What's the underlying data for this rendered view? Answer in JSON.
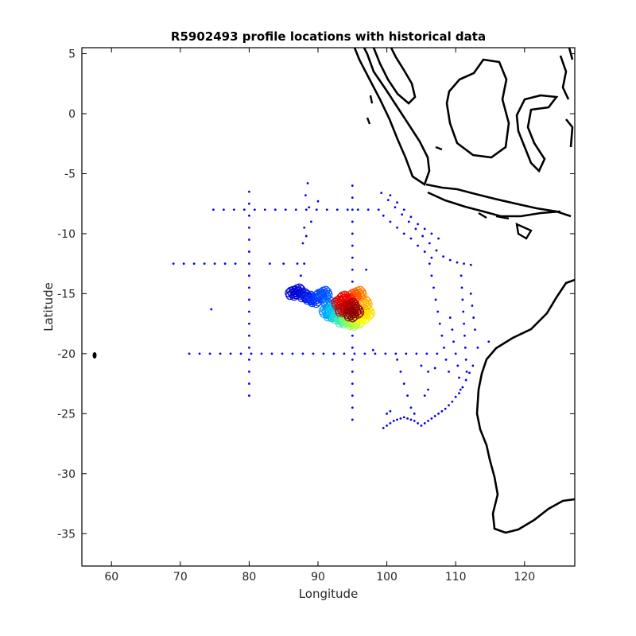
{
  "chart_data": {
    "type": "scatter",
    "title": "R5902493 profile locations with historical data",
    "xlabel": "Longitude",
    "ylabel": "Latitude",
    "xlim": [
      55.7,
      127.3
    ],
    "ylim": [
      -37.7,
      5.5
    ],
    "xticks": [
      60,
      70,
      80,
      90,
      100,
      110,
      120
    ],
    "yticks": [
      5,
      0,
      -5,
      -10,
      -15,
      -20,
      -25,
      -30,
      -35
    ],
    "colors": {
      "historical": "#0000ee",
      "coast": "#000000"
    },
    "historical_points": [
      [
        74.8,
        -8.0
      ],
      [
        76.3,
        -8.0
      ],
      [
        77.8,
        -8.0
      ],
      [
        79.3,
        -8.0
      ],
      [
        80.8,
        -8.0
      ],
      [
        82.3,
        -8.0
      ],
      [
        83.8,
        -8.0
      ],
      [
        85.3,
        -8.0
      ],
      [
        86.8,
        -8.0
      ],
      [
        88.3,
        -8.0
      ],
      [
        89.8,
        -8.0
      ],
      [
        91.3,
        -8.0
      ],
      [
        92.8,
        -8.0
      ],
      [
        94.3,
        -8.0
      ],
      [
        95.8,
        -8.0
      ],
      [
        97.3,
        -8.0
      ],
      [
        98.8,
        -8.0
      ],
      [
        71.3,
        -20.0
      ],
      [
        72.8,
        -20.0
      ],
      [
        74.3,
        -20.0
      ],
      [
        75.8,
        -20.0
      ],
      [
        77.3,
        -20.0
      ],
      [
        78.8,
        -20.0
      ],
      [
        80.3,
        -20.0
      ],
      [
        81.8,
        -20.0
      ],
      [
        83.3,
        -20.0
      ],
      [
        84.8,
        -20.0
      ],
      [
        86.3,
        -20.0
      ],
      [
        87.8,
        -20.0
      ],
      [
        89.3,
        -20.0
      ],
      [
        90.8,
        -20.0
      ],
      [
        92.3,
        -20.0
      ],
      [
        93.8,
        -20.0
      ],
      [
        95.3,
        -20.0
      ],
      [
        96.8,
        -20.0
      ],
      [
        98.3,
        -20.0
      ],
      [
        99.8,
        -20.0
      ],
      [
        101.3,
        -20.0
      ],
      [
        102.8,
        -20.0
      ],
      [
        104.3,
        -20.0
      ],
      [
        105.8,
        -20.0
      ],
      [
        107.3,
        -20.0
      ],
      [
        80.0,
        -6.5
      ],
      [
        80.0,
        -7.5
      ],
      [
        80.0,
        -8.5
      ],
      [
        80.0,
        -9.5
      ],
      [
        80.0,
        -10.5
      ],
      [
        80.0,
        -11.5
      ],
      [
        80.0,
        -12.5
      ],
      [
        80.0,
        -13.5
      ],
      [
        80.0,
        -14.5
      ],
      [
        80.0,
        -15.5
      ],
      [
        80.0,
        -16.5
      ],
      [
        80.0,
        -17.5
      ],
      [
        80.0,
        -18.5
      ],
      [
        80.0,
        -19.5
      ],
      [
        80.0,
        -20.5
      ],
      [
        80.0,
        -21.5
      ],
      [
        80.0,
        -22.5
      ],
      [
        80.0,
        -23.5
      ],
      [
        95.0,
        -6.0
      ],
      [
        95.0,
        -7.0
      ],
      [
        95.0,
        -8.0
      ],
      [
        95.0,
        -9.0
      ],
      [
        95.0,
        -10.0
      ],
      [
        95.0,
        -11.0
      ],
      [
        95.0,
        -12.0
      ],
      [
        95.0,
        -13.0
      ],
      [
        95.0,
        -14.0
      ],
      [
        95.0,
        -18.5
      ],
      [
        95.0,
        -19.5
      ],
      [
        95.0,
        -20.5
      ],
      [
        95.0,
        -21.5
      ],
      [
        95.0,
        -22.5
      ],
      [
        95.0,
        -23.5
      ],
      [
        95.0,
        -24.5
      ],
      [
        95.0,
        -25.5
      ],
      [
        69.0,
        -12.5
      ],
      [
        70.5,
        -12.5
      ],
      [
        72.0,
        -12.5
      ],
      [
        73.5,
        -12.5
      ],
      [
        75.0,
        -12.5
      ],
      [
        76.5,
        -12.5
      ],
      [
        78.0,
        -12.5
      ],
      [
        83.0,
        -12.5
      ],
      [
        85.0,
        -12.5
      ],
      [
        87.0,
        -12.5
      ],
      [
        88.0,
        -12.5
      ],
      [
        88.5,
        -5.8
      ],
      [
        88.2,
        -6.8
      ],
      [
        88.7,
        -7.8
      ],
      [
        88.0,
        -9.5
      ],
      [
        88.3,
        -10.2
      ],
      [
        87.8,
        -10.8
      ],
      [
        89.0,
        -9.0
      ],
      [
        90.0,
        -7.3
      ],
      [
        87.5,
        -13.5
      ],
      [
        74.5,
        -16.3
      ],
      [
        97.0,
        -13.0
      ],
      [
        99.2,
        -6.6
      ],
      [
        100.2,
        -7.2
      ],
      [
        101.2,
        -7.8
      ],
      [
        102.2,
        -8.4
      ],
      [
        103.2,
        -9.0
      ],
      [
        104.2,
        -9.6
      ],
      [
        105.2,
        -10.2
      ],
      [
        106.2,
        -10.8
      ],
      [
        107.2,
        -11.4
      ],
      [
        108.2,
        -11.9
      ],
      [
        109.2,
        -12.2
      ],
      [
        110.2,
        -12.4
      ],
      [
        111.2,
        -12.5
      ],
      [
        112.2,
        -12.6
      ],
      [
        100.5,
        -6.8
      ],
      [
        101.5,
        -7.4
      ],
      [
        102.5,
        -8.0
      ],
      [
        103.5,
        -8.6
      ],
      [
        104.5,
        -9.2
      ],
      [
        105.5,
        -9.6
      ],
      [
        106.5,
        -10.0
      ],
      [
        107.5,
        -10.4
      ],
      [
        99.5,
        -8.5
      ],
      [
        100.5,
        -9.0
      ],
      [
        101.5,
        -9.5
      ],
      [
        102.5,
        -10.0
      ],
      [
        103.5,
        -10.4
      ],
      [
        104.5,
        -11.0
      ],
      [
        105.5,
        -11.5
      ],
      [
        106.5,
        -12.0
      ],
      [
        106.2,
        -12.5
      ],
      [
        106.5,
        -13.5
      ],
      [
        106.8,
        -14.5
      ],
      [
        107.1,
        -15.5
      ],
      [
        107.4,
        -16.5
      ],
      [
        107.7,
        -17.5
      ],
      [
        108.0,
        -18.5
      ],
      [
        108.3,
        -19.5
      ],
      [
        108.6,
        -20.5
      ],
      [
        109.0,
        -21.5
      ],
      [
        110.8,
        -13.5
      ],
      [
        110.9,
        -14.5
      ],
      [
        111.0,
        -15.5
      ],
      [
        111.1,
        -16.5
      ],
      [
        111.2,
        -17.5
      ],
      [
        111.3,
        -18.5
      ],
      [
        111.4,
        -19.5
      ],
      [
        111.5,
        -20.5
      ],
      [
        111.6,
        -21.5
      ],
      [
        109.2,
        -17.0
      ],
      [
        109.5,
        -18.0
      ],
      [
        109.7,
        -19.0
      ],
      [
        110.0,
        -20.0
      ],
      [
        110.3,
        -21.0
      ],
      [
        110.5,
        -22.0
      ],
      [
        110.7,
        -23.0
      ],
      [
        112.2,
        -15.0
      ],
      [
        112.4,
        -16.0
      ],
      [
        112.6,
        -17.0
      ],
      [
        112.8,
        -18.0
      ],
      [
        112.5,
        -21.0
      ],
      [
        112.0,
        -21.6
      ],
      [
        111.5,
        -22.2
      ],
      [
        111.0,
        -22.8
      ],
      [
        110.5,
        -23.3
      ],
      [
        110.0,
        -23.6
      ],
      [
        109.5,
        -24.0
      ],
      [
        109.0,
        -24.3
      ],
      [
        108.5,
        -24.6
      ],
      [
        108.0,
        -24.8
      ],
      [
        107.5,
        -25.0
      ],
      [
        107.0,
        -25.2
      ],
      [
        106.5,
        -25.4
      ],
      [
        106.0,
        -25.6
      ],
      [
        105.5,
        -25.8
      ],
      [
        105.0,
        -26.0
      ],
      [
        104.5,
        -25.8
      ],
      [
        104.0,
        -25.6
      ],
      [
        103.5,
        -25.5
      ],
      [
        103.0,
        -25.4
      ],
      [
        102.5,
        -25.3
      ],
      [
        102.0,
        -25.4
      ],
      [
        101.5,
        -25.5
      ],
      [
        101.0,
        -25.6
      ],
      [
        100.5,
        -25.8
      ],
      [
        100.0,
        -26.0
      ],
      [
        99.5,
        -26.2
      ],
      [
        101.5,
        -20.5
      ],
      [
        102.0,
        -21.5
      ],
      [
        102.5,
        -22.5
      ],
      [
        103.0,
        -23.5
      ],
      [
        103.5,
        -24.5
      ],
      [
        104.0,
        -25.0
      ],
      [
        100.0,
        -25.0
      ],
      [
        100.5,
        -24.8
      ],
      [
        98.0,
        -19.7
      ],
      [
        105.5,
        -23.5
      ],
      [
        106.0,
        -23.0
      ],
      [
        114.8,
        -19.0
      ],
      [
        113.2,
        -19.5
      ],
      [
        105.0,
        -21.0
      ],
      [
        106.0,
        -21.5
      ],
      [
        107.0,
        -21.2
      ]
    ],
    "profile_clusters": [
      {
        "lon": 86.3,
        "lat": -15.0,
        "color": "#0000cc"
      },
      {
        "lon": 87.2,
        "lat": -14.8,
        "color": "#0000dd"
      },
      {
        "lon": 88.0,
        "lat": -15.2,
        "color": "#0010dd"
      },
      {
        "lon": 88.8,
        "lat": -15.4,
        "color": "#0020ee"
      },
      {
        "lon": 89.5,
        "lat": -15.6,
        "color": "#0030ff"
      },
      {
        "lon": 90.3,
        "lat": -15.2,
        "color": "#0040ff"
      },
      {
        "lon": 91.0,
        "lat": -15.0,
        "color": "#0050ff"
      },
      {
        "lon": 91.5,
        "lat": -15.8,
        "color": "#0070ff"
      },
      {
        "lon": 91.2,
        "lat": -16.5,
        "color": "#0090ff"
      },
      {
        "lon": 91.8,
        "lat": -16.8,
        "color": "#00b0ff"
      },
      {
        "lon": 92.2,
        "lat": -16.3,
        "color": "#00d0ee"
      },
      {
        "lon": 92.8,
        "lat": -17.0,
        "color": "#20e0cc"
      },
      {
        "lon": 93.5,
        "lat": -17.3,
        "color": "#40f0a0"
      },
      {
        "lon": 94.2,
        "lat": -17.2,
        "color": "#70ff70"
      },
      {
        "lon": 95.0,
        "lat": -17.5,
        "color": "#a0ff40"
      },
      {
        "lon": 95.8,
        "lat": -17.3,
        "color": "#d0ff20"
      },
      {
        "lon": 96.5,
        "lat": -17.0,
        "color": "#ffff00"
      },
      {
        "lon": 97.2,
        "lat": -16.6,
        "color": "#ffe000"
      },
      {
        "lon": 96.8,
        "lat": -15.8,
        "color": "#ffb000"
      },
      {
        "lon": 96.0,
        "lat": -15.0,
        "color": "#ff8000"
      },
      {
        "lon": 95.2,
        "lat": -15.2,
        "color": "#ff5000"
      },
      {
        "lon": 94.5,
        "lat": -15.6,
        "color": "#ff2000"
      },
      {
        "lon": 93.8,
        "lat": -15.4,
        "color": "#ee0000"
      },
      {
        "lon": 93.0,
        "lat": -15.8,
        "color": "#dd0000"
      },
      {
        "lon": 93.5,
        "lat": -16.4,
        "color": "#cc0000"
      },
      {
        "lon": 94.3,
        "lat": -16.2,
        "color": "#bb0000"
      },
      {
        "lon": 95.0,
        "lat": -16.0,
        "color": "#aa0000"
      },
      {
        "lon": 95.6,
        "lat": -16.5,
        "color": "#990000"
      },
      {
        "lon": 94.8,
        "lat": -16.8,
        "color": "#880000"
      }
    ]
  }
}
